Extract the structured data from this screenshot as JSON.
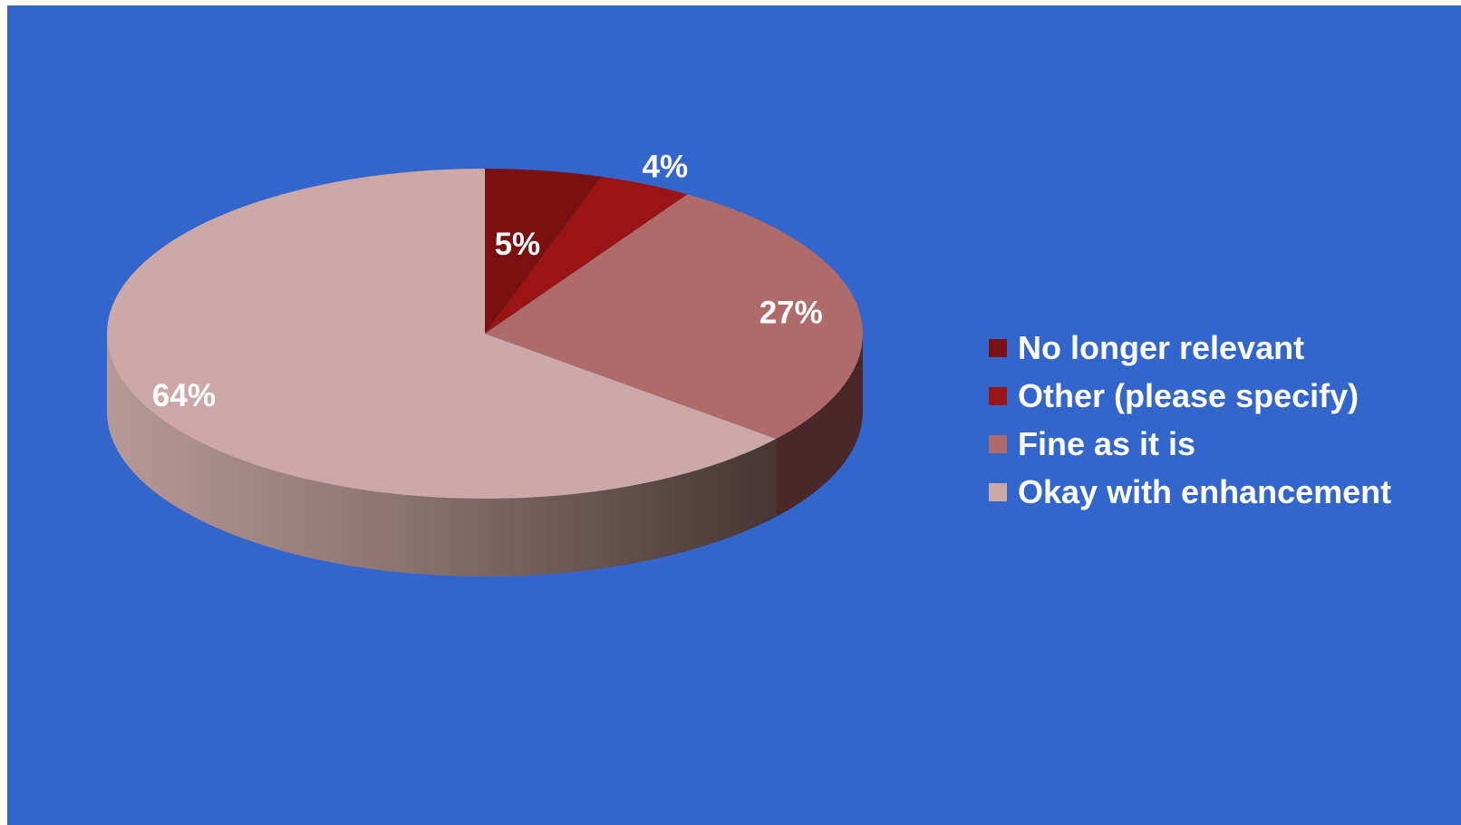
{
  "colors": {
    "background": "#3366CC"
  },
  "chart_data": {
    "type": "pie",
    "title": "",
    "categories": [
      "No longer relevant",
      "Other (please specify)",
      "Fine as it is",
      "Okay with enhancement"
    ],
    "values": [
      5,
      4,
      27,
      64
    ],
    "labels": [
      "5%",
      "4%",
      "27%",
      "64%"
    ],
    "colors": [
      "#7A1010",
      "#9A1414",
      "#AE6B69",
      "#CCA8A7"
    ],
    "three_d": true,
    "legend": "right"
  }
}
